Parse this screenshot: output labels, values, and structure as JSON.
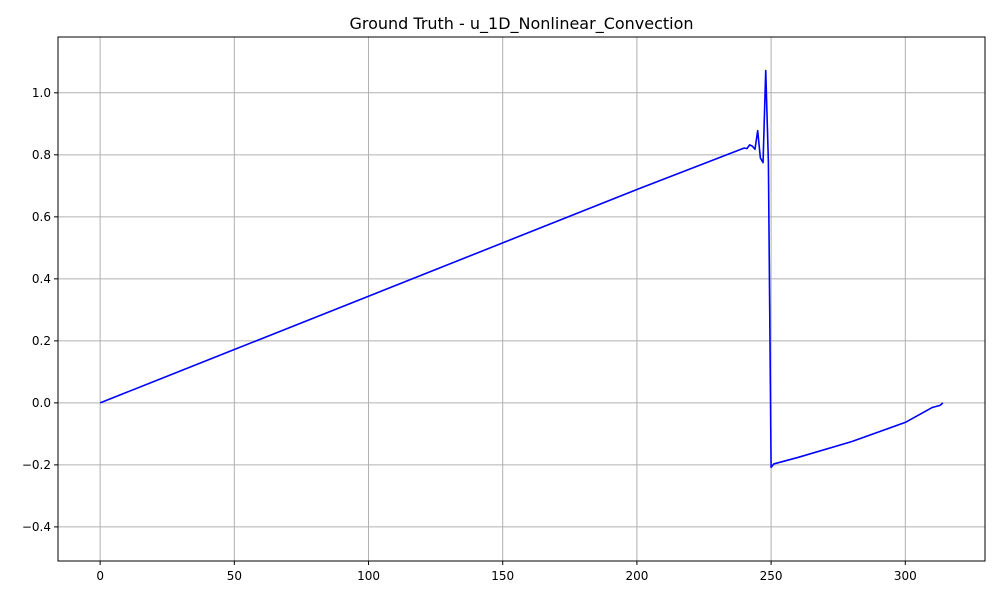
{
  "chart_data": {
    "type": "line",
    "title": "Ground Truth - u_1D_Nonlinear_Convection",
    "xlabel": "",
    "ylabel": "",
    "xlim": [
      -15.7,
      329.7
    ],
    "ylim": [
      -0.51,
      1.18
    ],
    "xticks": [
      0,
      50,
      100,
      150,
      200,
      250,
      300
    ],
    "yticks": [
      -0.4,
      -0.2,
      0.0,
      0.2,
      0.4,
      0.6,
      0.8,
      1.0
    ],
    "xtick_labels": [
      "0",
      "50",
      "100",
      "150",
      "200",
      "250",
      "300"
    ],
    "ytick_labels": [
      "−0.4",
      "−0.2",
      "0.0",
      "0.2",
      "0.4",
      "0.6",
      "0.8",
      "1.0"
    ],
    "grid": true,
    "legend": "none",
    "series": [
      {
        "color": "#0000ff",
        "x": [
          0,
          50,
          100,
          150,
          200,
          240,
          241,
          242,
          243,
          244,
          245,
          246,
          247,
          248,
          249,
          250,
          251,
          260,
          280,
          300,
          310,
          313,
          314
        ],
        "y": [
          0.0,
          0.172,
          0.344,
          0.516,
          0.688,
          0.822,
          0.82,
          0.832,
          0.828,
          0.818,
          0.878,
          0.79,
          0.775,
          1.072,
          0.775,
          -0.208,
          -0.197,
          -0.176,
          -0.125,
          -0.063,
          -0.015,
          -0.008,
          0.0
        ]
      }
    ]
  }
}
